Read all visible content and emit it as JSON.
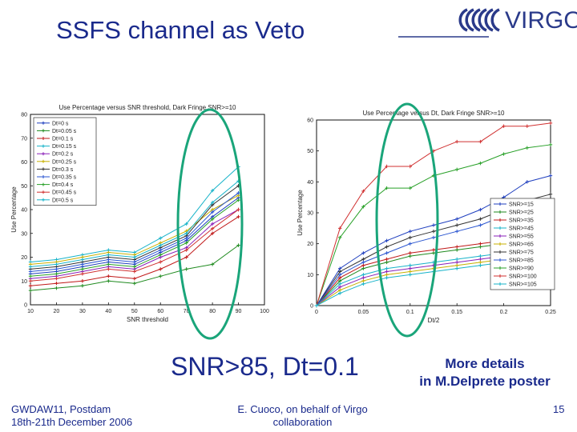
{
  "slide": {
    "title": "SSFS channel as Veto",
    "caption": "SNR>85, Dt=0.1",
    "details_line1": "More details",
    "details_line2": "in M.Delprete poster",
    "footer_left_line1": "GWDAW11,  Postdam",
    "footer_left_line2": "18th-21th December 2006",
    "footer_center_line1": "E. Cuoco, on behalf of Virgo",
    "footer_center_line2": "collaboration",
    "page_number": "15",
    "accent_color": "#1a2a8c",
    "highlight_color": "#1aa57a"
  },
  "logo": {
    "text": "VIRGO"
  },
  "chart_data": [
    {
      "type": "line",
      "title": "Use Percentage versus SNR threshold, Dark Fringe SNR>=10",
      "xlabel": "SNR threshold",
      "ylabel": "Use Percentage",
      "xlim": [
        10,
        100
      ],
      "ylim": [
        0,
        80
      ],
      "x": [
        10,
        20,
        30,
        40,
        50,
        60,
        70,
        80,
        90
      ],
      "x_ticks": [
        "10",
        "20",
        "30",
        "40",
        "50",
        "60",
        "70",
        "80",
        "90",
        "100"
      ],
      "y_ticks": [
        "0",
        "10",
        "20",
        "30",
        "40",
        "50",
        "60",
        "70",
        "80"
      ],
      "legend_position": "top-left",
      "series": [
        {
          "name": "Dt=0 s",
          "color": "#1f3fbf",
          "values": [
            13,
            14,
            16,
            18,
            17,
            22,
            27,
            37,
            45
          ]
        },
        {
          "name": "Dt=0.05 s",
          "color": "#1e8a1e",
          "values": [
            6,
            7,
            8,
            10,
            9,
            12,
            15,
            17,
            25
          ]
        },
        {
          "name": "Dt=0.1 s",
          "color": "#c01818",
          "values": [
            8,
            9,
            10,
            12,
            11,
            15,
            20,
            30,
            37
          ]
        },
        {
          "name": "Dt=0.15 s",
          "color": "#17b3c9",
          "values": [
            18,
            19,
            21,
            23,
            22,
            28,
            34,
            48,
            58
          ]
        },
        {
          "name": "Dt=0.2 s",
          "color": "#8a1fb8",
          "values": [
            11,
            12,
            14,
            16,
            15,
            20,
            24,
            34,
            40
          ]
        },
        {
          "name": "Dt=0.25 s",
          "color": "#c8b000",
          "values": [
            17,
            18,
            20,
            22,
            21,
            26,
            31,
            40,
            46
          ]
        },
        {
          "name": "Dt=0.3 s",
          "color": "#333333",
          "values": [
            15,
            16,
            18,
            20,
            19,
            24,
            29,
            42,
            50
          ]
        },
        {
          "name": "Dt=0.35 s",
          "color": "#2a55d0",
          "values": [
            14,
            15,
            17,
            19,
            18,
            23,
            28,
            39,
            47
          ]
        },
        {
          "name": "Dt=0.4 s",
          "color": "#28a028",
          "values": [
            12,
            13,
            15,
            17,
            16,
            21,
            26,
            36,
            44
          ]
        },
        {
          "name": "Dt=0.45 s",
          "color": "#d03030",
          "values": [
            10,
            11,
            13,
            15,
            14,
            18,
            23,
            32,
            40
          ]
        },
        {
          "name": "Dt=0.5 s",
          "color": "#17b3c9",
          "values": [
            16,
            17,
            19,
            21,
            20,
            25,
            30,
            43,
            52
          ]
        }
      ]
    },
    {
      "type": "line",
      "title": "Use Percentage versus Dt, Dark Fringe SNR>=10",
      "xlabel": "Dt/2",
      "ylabel": "Use Percentage",
      "xlim": [
        0,
        0.25
      ],
      "ylim": [
        0,
        60
      ],
      "x": [
        0,
        0.025,
        0.05,
        0.075,
        0.1,
        0.125,
        0.15,
        0.175,
        0.2,
        0.225,
        0.25
      ],
      "x_ticks": [
        "0",
        "0.05",
        "0.1",
        "0.15",
        "0.2",
        "0.25"
      ],
      "y_ticks": [
        "0",
        "10",
        "20",
        "30",
        "40",
        "50",
        "60"
      ],
      "legend_position": "lower-right",
      "series": [
        {
          "name": "SNR>=15",
          "color": "#1f3fbf",
          "values": [
            0,
            12,
            17,
            21,
            24,
            26,
            28,
            31,
            35,
            40,
            42
          ]
        },
        {
          "name": "SNR>=25",
          "color": "#1e8a1e",
          "values": [
            0,
            8,
            12,
            14,
            16,
            17,
            18,
            19,
            20,
            21,
            22
          ]
        },
        {
          "name": "SNR>=35",
          "color": "#c01818",
          "values": [
            0,
            9,
            13,
            15,
            17,
            18,
            19,
            20,
            21,
            22,
            23
          ]
        },
        {
          "name": "SNR>=45",
          "color": "#17b3c9",
          "values": [
            0,
            7,
            10,
            12,
            13,
            14,
            15,
            16,
            17,
            18,
            19
          ]
        },
        {
          "name": "SNR>=55",
          "color": "#8a1fb8",
          "values": [
            0,
            6,
            9,
            11,
            12,
            13,
            14,
            15,
            16,
            17,
            18
          ]
        },
        {
          "name": "SNR>=65",
          "color": "#c8b000",
          "values": [
            0,
            5,
            8,
            10,
            11,
            12,
            13,
            14,
            15,
            16,
            17
          ]
        },
        {
          "name": "SNR>=75",
          "color": "#333333",
          "values": [
            0,
            11,
            15,
            19,
            22,
            24,
            26,
            28,
            31,
            34,
            36
          ]
        },
        {
          "name": "SNR>=85",
          "color": "#2a55d0",
          "values": [
            0,
            10,
            14,
            17,
            20,
            22,
            24,
            26,
            29,
            32,
            34
          ]
        },
        {
          "name": "SNR>=90",
          "color": "#28a028",
          "values": [
            0,
            22,
            32,
            38,
            38,
            42,
            44,
            46,
            49,
            51,
            52
          ]
        },
        {
          "name": "SNR>=100",
          "color": "#d03030",
          "values": [
            0,
            25,
            37,
            45,
            45,
            50,
            53,
            53,
            58,
            58,
            59
          ]
        },
        {
          "name": "SNR>=105",
          "color": "#17b3c9",
          "values": [
            0,
            4,
            7,
            9,
            10,
            11,
            12,
            13,
            14,
            15,
            16
          ]
        }
      ]
    }
  ]
}
